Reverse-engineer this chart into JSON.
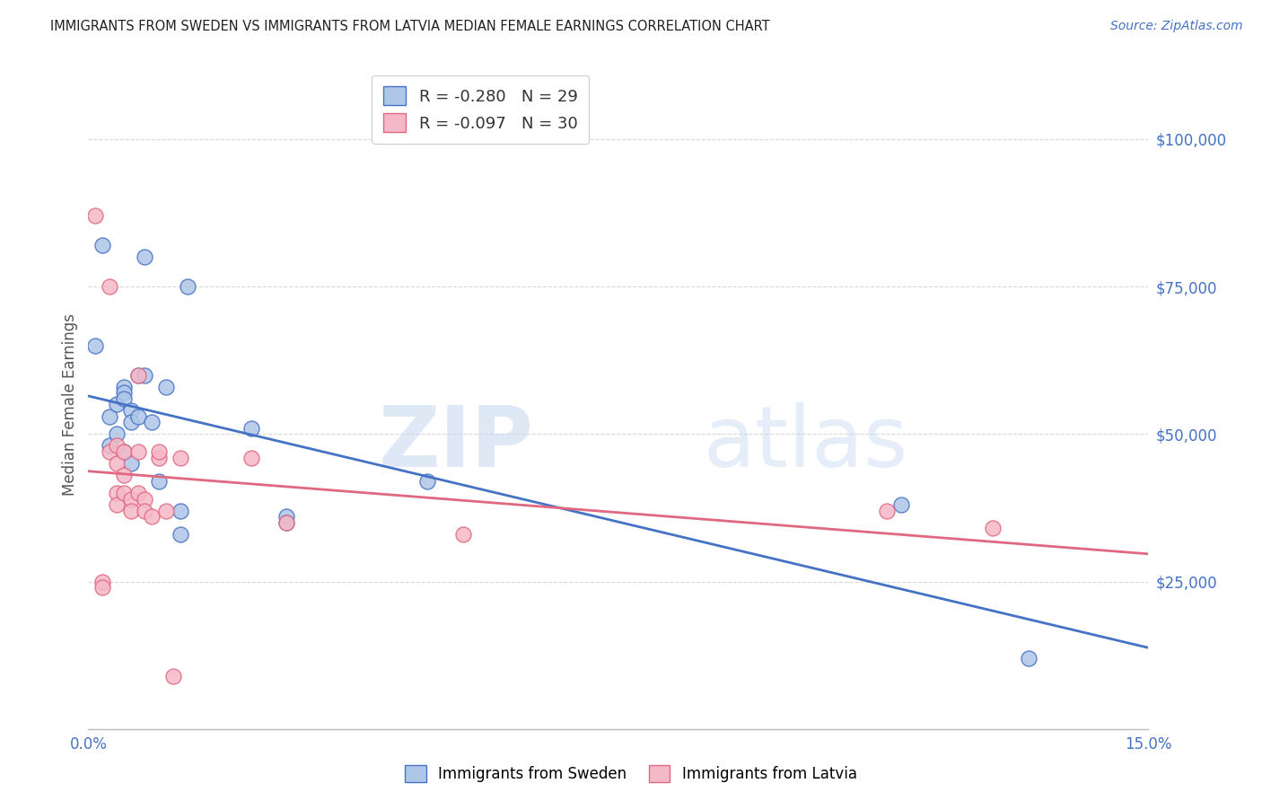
{
  "title": "IMMIGRANTS FROM SWEDEN VS IMMIGRANTS FROM LATVIA MEDIAN FEMALE EARNINGS CORRELATION CHART",
  "source": "Source: ZipAtlas.com",
  "ylabel": "Median Female Earnings",
  "xlabel": "",
  "xlim": [
    0.0,
    0.15
  ],
  "ylim": [
    0,
    110000
  ],
  "yticks": [
    25000,
    50000,
    75000,
    100000
  ],
  "ytick_labels": [
    "$25,000",
    "$50,000",
    "$75,000",
    "$100,000"
  ],
  "xticks": [
    0.0,
    0.025,
    0.05,
    0.075,
    0.1,
    0.125,
    0.15
  ],
  "xtick_labels": [
    "0.0%",
    "",
    "",
    "",
    "",
    "",
    "15.0%"
  ],
  "watermark_zip": "ZIP",
  "watermark_atlas": "atlas",
  "legend_sweden": "R = -0.280   N = 29",
  "legend_latvia": "R = -0.097   N = 30",
  "sweden_color": "#aec6e8",
  "latvia_color": "#f5b8c8",
  "sweden_line_color": "#4472c4",
  "latvia_line_color": "#e06880",
  "title_color": "#222222",
  "axis_color": "#4472c4",
  "sweden_x": [
    0.001,
    0.002,
    0.003,
    0.003,
    0.004,
    0.004,
    0.005,
    0.005,
    0.005,
    0.005,
    0.006,
    0.006,
    0.006,
    0.007,
    0.007,
    0.008,
    0.008,
    0.009,
    0.01,
    0.011,
    0.013,
    0.013,
    0.014,
    0.023,
    0.028,
    0.028,
    0.048,
    0.115,
    0.133
  ],
  "sweden_y": [
    65000,
    82000,
    53000,
    48000,
    55000,
    50000,
    58000,
    57000,
    56000,
    47000,
    54000,
    52000,
    45000,
    60000,
    53000,
    80000,
    60000,
    52000,
    42000,
    58000,
    37000,
    33000,
    75000,
    51000,
    36000,
    35000,
    42000,
    38000,
    12000
  ],
  "latvia_x": [
    0.001,
    0.002,
    0.002,
    0.003,
    0.003,
    0.004,
    0.004,
    0.004,
    0.004,
    0.005,
    0.005,
    0.005,
    0.006,
    0.006,
    0.007,
    0.007,
    0.007,
    0.008,
    0.008,
    0.009,
    0.01,
    0.01,
    0.011,
    0.012,
    0.013,
    0.023,
    0.028,
    0.053,
    0.113,
    0.128
  ],
  "latvia_y": [
    87000,
    25000,
    24000,
    75000,
    47000,
    48000,
    45000,
    40000,
    38000,
    47000,
    43000,
    40000,
    39000,
    37000,
    60000,
    47000,
    40000,
    39000,
    37000,
    36000,
    46000,
    47000,
    37000,
    9000,
    46000,
    46000,
    35000,
    33000,
    37000,
    34000
  ],
  "background_color": "#ffffff",
  "grid_color": "#d8d8d8"
}
